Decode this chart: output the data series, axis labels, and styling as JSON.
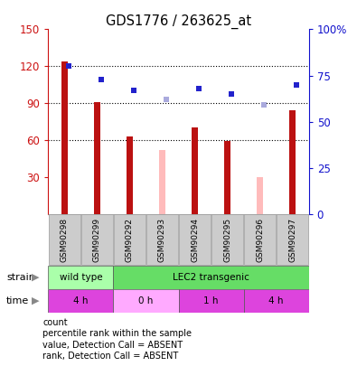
{
  "title": "GDS1776 / 263625_at",
  "samples": [
    "GSM90298",
    "GSM90299",
    "GSM90292",
    "GSM90293",
    "GSM90294",
    "GSM90295",
    "GSM90296",
    "GSM90297"
  ],
  "count_values": [
    124,
    91,
    63,
    null,
    70,
    59,
    null,
    84
  ],
  "count_absent": [
    null,
    null,
    null,
    52,
    null,
    null,
    30,
    null
  ],
  "rank_values": [
    80,
    73,
    67,
    null,
    68,
    65,
    null,
    70
  ],
  "rank_absent": [
    null,
    null,
    null,
    62,
    null,
    null,
    59,
    null
  ],
  "left_ylim": [
    0,
    150
  ],
  "right_ylim": [
    0,
    100
  ],
  "left_yticks": [
    30,
    60,
    90,
    120,
    150
  ],
  "right_yticks": [
    0,
    25,
    50,
    75,
    100
  ],
  "right_yticklabels": [
    "0",
    "25",
    "50",
    "75",
    "100%"
  ],
  "strain_labels": [
    {
      "label": "wild type",
      "start": 0,
      "end": 2,
      "color": "#aaffaa"
    },
    {
      "label": "LEC2 transgenic",
      "start": 2,
      "end": 8,
      "color": "#66dd66"
    }
  ],
  "time_labels": [
    {
      "label": "4 h",
      "start": 0,
      "end": 2,
      "color": "#dd44dd"
    },
    {
      "label": "0 h",
      "start": 2,
      "end": 4,
      "color": "#ffaaff"
    },
    {
      "label": "1 h",
      "start": 4,
      "end": 6,
      "color": "#dd44dd"
    },
    {
      "label": "4 h",
      "start": 6,
      "end": 8,
      "color": "#dd44dd"
    }
  ],
  "bar_color_present": "#bb1111",
  "bar_color_absent": "#ffbbbb",
  "rank_color_present": "#2222cc",
  "rank_color_absent": "#aaaadd",
  "bar_width": 0.18,
  "rank_square_size": 4,
  "tick_color_left": "#cc1111",
  "tick_color_right": "#1111cc",
  "plot_bg": "#ffffff",
  "legend_items": [
    {
      "color": "#bb1111",
      "label": "count",
      "square": true
    },
    {
      "color": "#2222cc",
      "label": "percentile rank within the sample",
      "square": true
    },
    {
      "color": "#ffbbbb",
      "label": "value, Detection Call = ABSENT",
      "square": true
    },
    {
      "color": "#aaaadd",
      "label": "rank, Detection Call = ABSENT",
      "square": true
    }
  ]
}
